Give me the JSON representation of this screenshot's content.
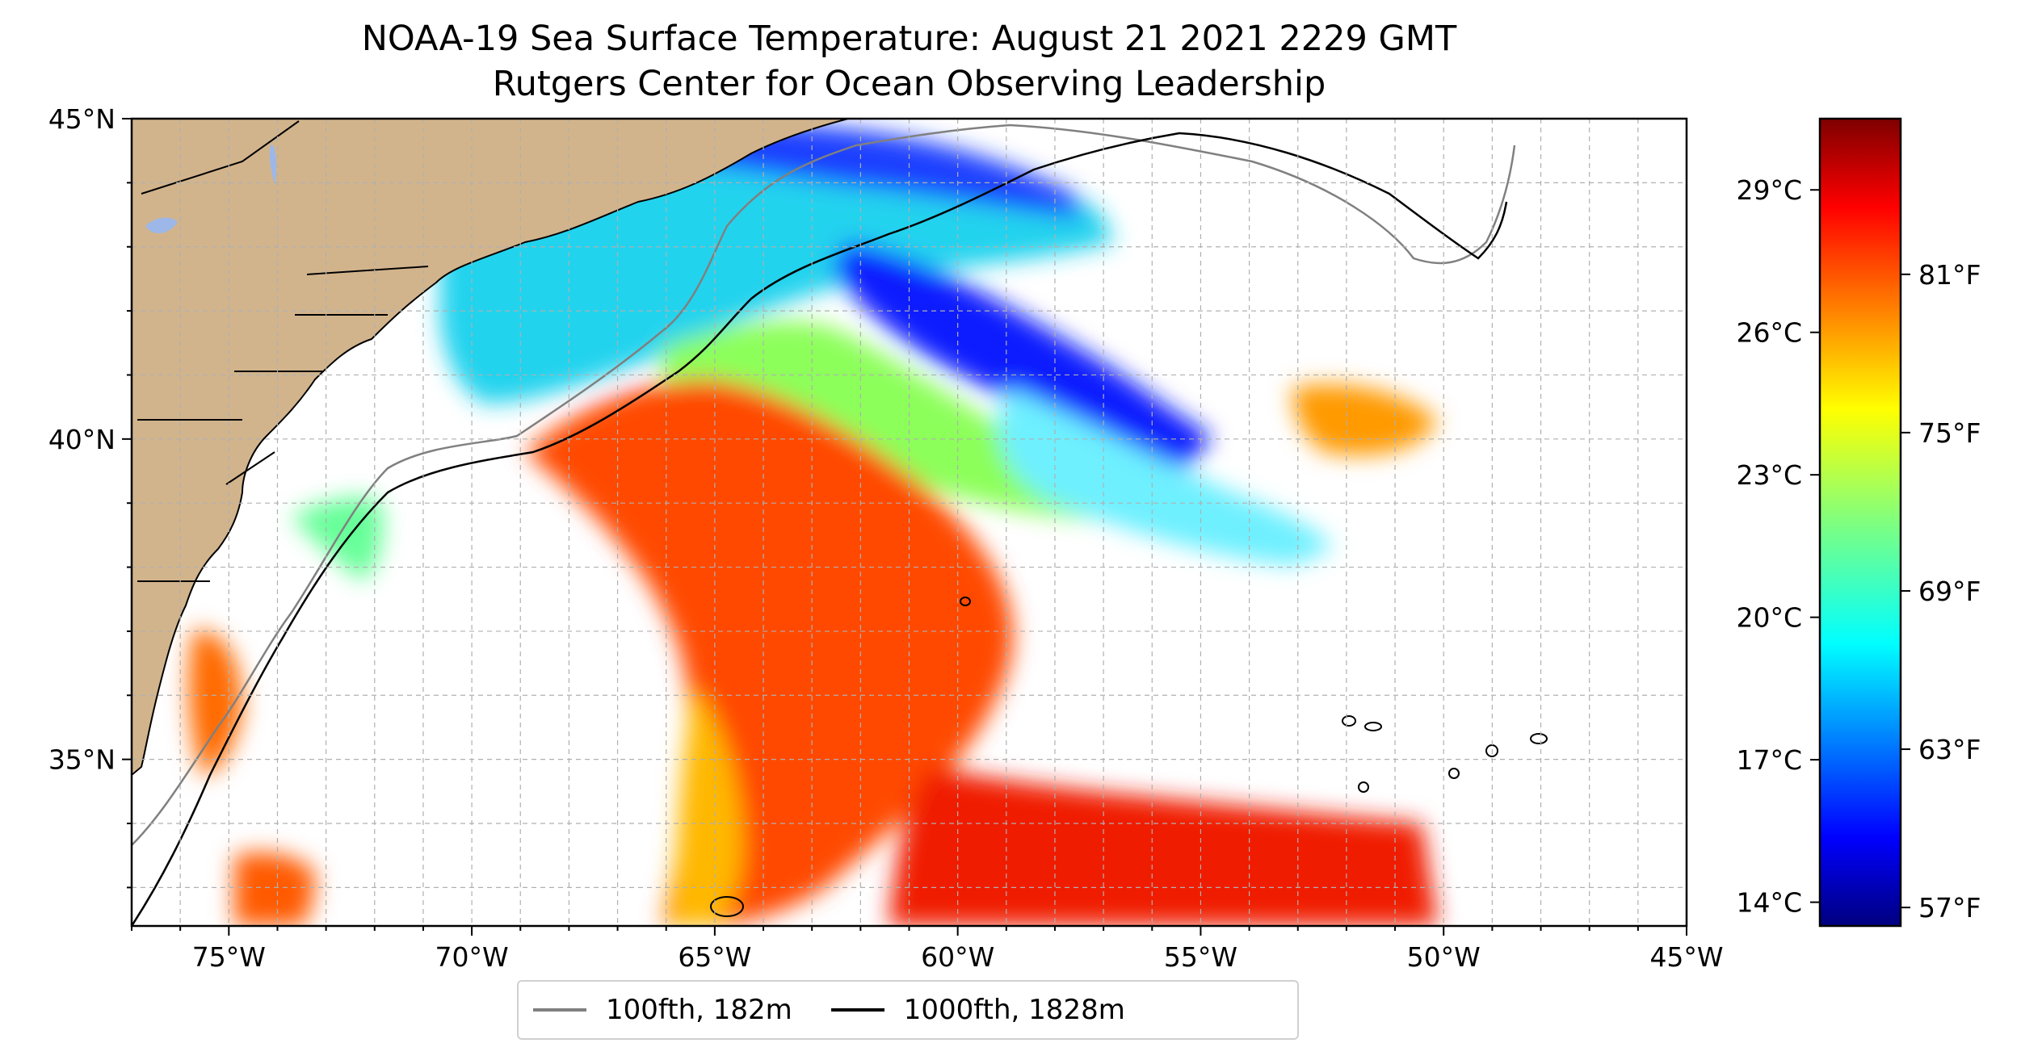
{
  "title": {
    "line1": "NOAA-19 Sea Surface Temperature: August 21 2021 2229 GMT",
    "line2": "Rutgers Center for Ocean Observing Leadership"
  },
  "map": {
    "lon_range": [
      -77,
      -45
    ],
    "lat_range": [
      32.4,
      45
    ],
    "lon_ticks": [
      {
        "value": -75,
        "label": "75°W"
      },
      {
        "value": -70,
        "label": "70°W"
      },
      {
        "value": -65,
        "label": "65°W"
      },
      {
        "value": -60,
        "label": "60°W"
      },
      {
        "value": -55,
        "label": "55°W"
      },
      {
        "value": -50,
        "label": "50°W"
      },
      {
        "value": -45,
        "label": "45°W"
      }
    ],
    "lat_ticks": [
      {
        "value": 45,
        "label": "45°N"
      },
      {
        "value": 40,
        "label": "40°N"
      },
      {
        "value": 35,
        "label": "35°N"
      }
    ],
    "grid": true,
    "land_color": "#d2b48c",
    "lake_color": "#9db7e8"
  },
  "colorbar": {
    "colormap": "jet",
    "celsius_ticks": [
      {
        "value": 29,
        "label": "29°C"
      },
      {
        "value": 26,
        "label": "26°C"
      },
      {
        "value": 23,
        "label": "23°C"
      },
      {
        "value": 20,
        "label": "20°C"
      },
      {
        "value": 17,
        "label": "17°C"
      },
      {
        "value": 14,
        "label": "14°C"
      }
    ],
    "fahrenheit_ticks": [
      {
        "value": 81,
        "label": "81°F"
      },
      {
        "value": 75,
        "label": "75°F"
      },
      {
        "value": 69,
        "label": "69°F"
      },
      {
        "value": 63,
        "label": "63°F"
      },
      {
        "value": 57,
        "label": "57°F"
      }
    ]
  },
  "legend": {
    "placement": "bottom-center",
    "items": [
      {
        "label": "100fth, 182m",
        "color": "#808080"
      },
      {
        "label": "1000fth, 1828m",
        "color": "#000000"
      }
    ]
  }
}
